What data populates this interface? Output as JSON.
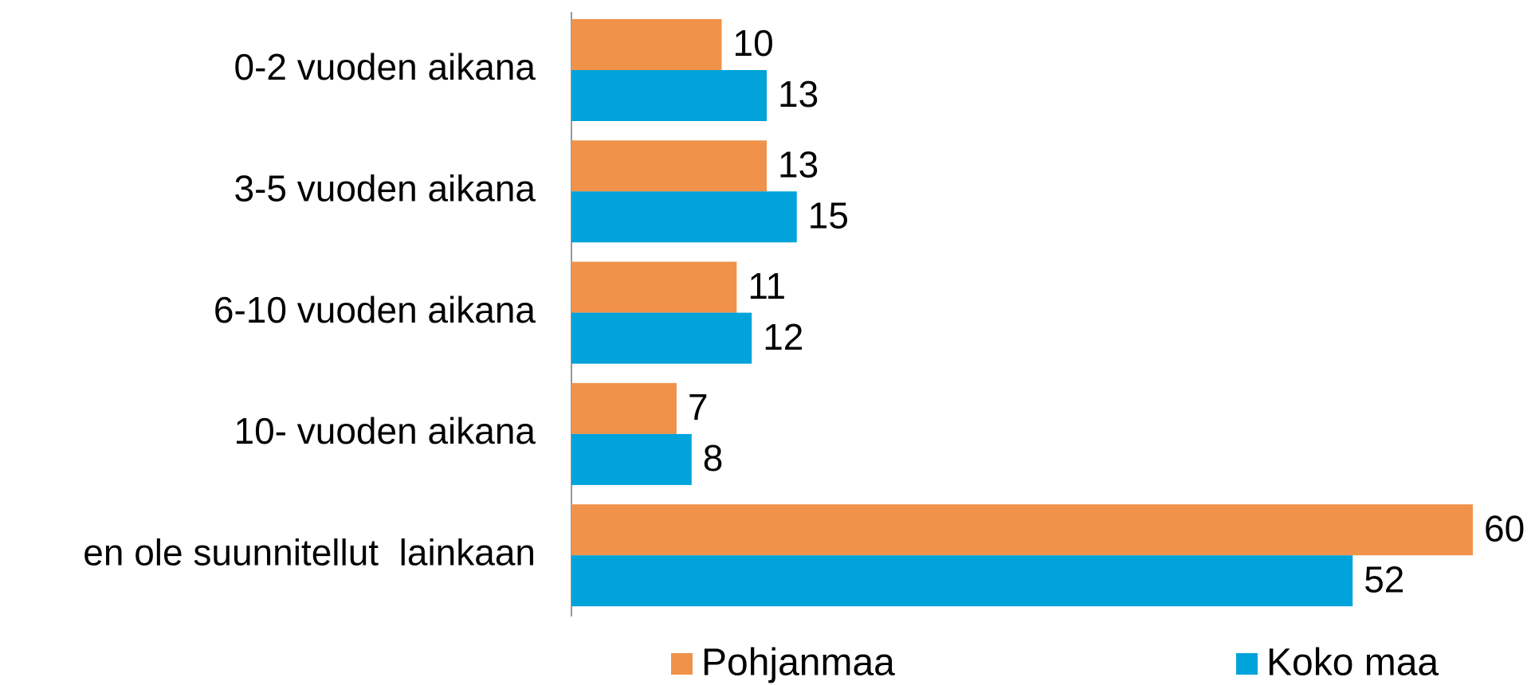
{
  "chart_data": {
    "type": "barh",
    "categories": [
      "0-2 vuoden aikana",
      "3-5 vuoden aikana",
      "6-10 vuoden aikana",
      "10- vuoden aikana",
      "en ole suunnitellut  lainkaan"
    ],
    "series": [
      {
        "name": "Pohjanmaa",
        "color": "#f0924a",
        "values": [
          10,
          13,
          11,
          7,
          60
        ]
      },
      {
        "name": "Koko maa",
        "color": "#00a3da",
        "values": [
          13,
          15,
          12,
          8,
          52
        ]
      }
    ]
  }
}
